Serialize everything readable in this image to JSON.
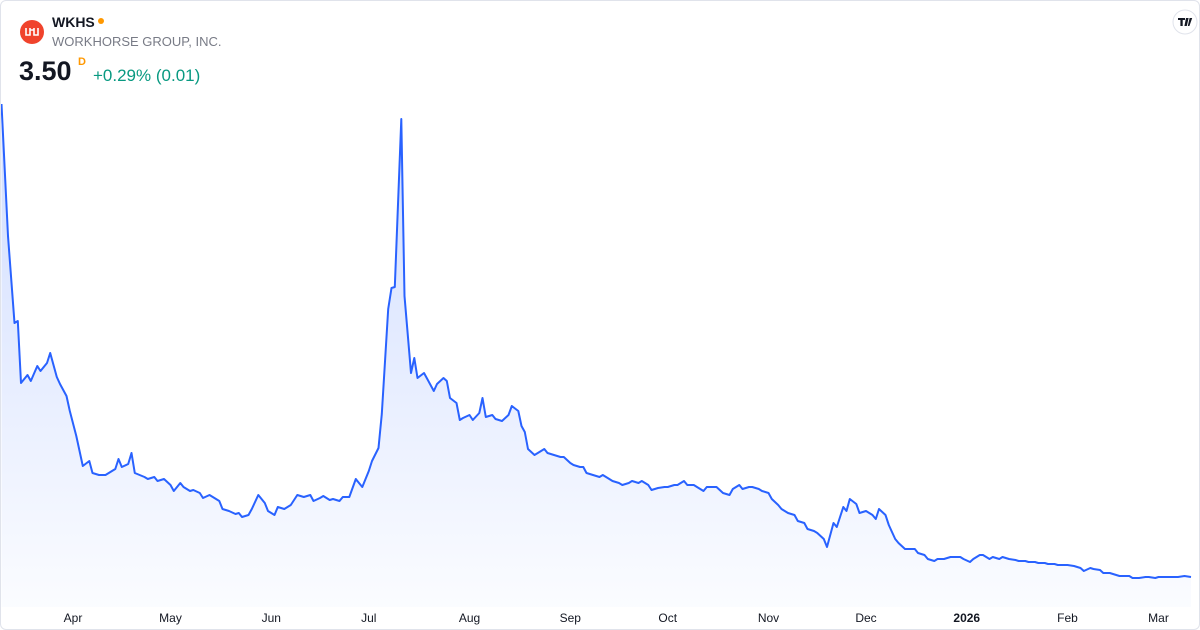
{
  "header": {
    "symbol": "WKHS",
    "company": "WORKHORSE GROUP, INC.",
    "price": "3.50",
    "price_flag": "D",
    "change": "+0.29% (0.01)"
  },
  "chart_data": {
    "type": "area",
    "color": "#2962ff",
    "xlim": [
      -22,
      344
    ],
    "ylim": [
      1.1,
      50.8
    ],
    "xticks": [
      {
        "value": 0,
        "label": "Apr"
      },
      {
        "value": 30,
        "label": "May"
      },
      {
        "value": 61,
        "label": "Jun"
      },
      {
        "value": 91,
        "label": "Jul"
      },
      {
        "value": 122,
        "label": "Aug"
      },
      {
        "value": 153,
        "label": "Sep"
      },
      {
        "value": 183,
        "label": "Oct"
      },
      {
        "value": 214,
        "label": "Nov"
      },
      {
        "value": 244,
        "label": "Dec"
      },
      {
        "value": 275,
        "label": "2026"
      },
      {
        "value": 306,
        "label": "Feb"
      },
      {
        "value": 334,
        "label": "Mar"
      }
    ],
    "x": [
      -22,
      -20,
      -18,
      -17,
      -16,
      -14,
      -13,
      -11,
      -10,
      -8,
      -7,
      -5,
      -4,
      -2,
      -1,
      1,
      3,
      5,
      6,
      8,
      10,
      12,
      13,
      14,
      15,
      17,
      18,
      19,
      22,
      23,
      25,
      26,
      28,
      30,
      31,
      33,
      34,
      36,
      37,
      39,
      40,
      42,
      43,
      45,
      46,
      48,
      50,
      51,
      52,
      54,
      55,
      57,
      59,
      60,
      62,
      63,
      65,
      67,
      69,
      71,
      73,
      74,
      76,
      77,
      79,
      80,
      82,
      83,
      85,
      87,
      88,
      89,
      91,
      92,
      94,
      95,
      97,
      98,
      99,
      101,
      102,
      104,
      105,
      106,
      108,
      109,
      111,
      112,
      114,
      115,
      116,
      118,
      119,
      120,
      122,
      123,
      125,
      126,
      127,
      129,
      130,
      132,
      134,
      135,
      137,
      138,
      139,
      140,
      142,
      143,
      145,
      146,
      148,
      150,
      151,
      153,
      154,
      156,
      157,
      158,
      160,
      162,
      163,
      165,
      166,
      168,
      169,
      171,
      172,
      174,
      175,
      177,
      178,
      180,
      182,
      183,
      185,
      186,
      188,
      189,
      191,
      192,
      194,
      195,
      197,
      198,
      200,
      202,
      203,
      205,
      206,
      208,
      209,
      211,
      212,
      214,
      215,
      217,
      218,
      220,
      222,
      223,
      225,
      226,
      228,
      229,
      231,
      232,
      234,
      235,
      237,
      238,
      239,
      241,
      242,
      244,
      246,
      247,
      248,
      250,
      251,
      253,
      254,
      256,
      257,
      259,
      260,
      262,
      263,
      265,
      266,
      268,
      270,
      271,
      273,
      274,
      276,
      277,
      279,
      280,
      282,
      283,
      285,
      286,
      288,
      290,
      291,
      293,
      294,
      296,
      297,
      299,
      300,
      302,
      303,
      305,
      306,
      308,
      310,
      311,
      313,
      314,
      316,
      317,
      319,
      320,
      322,
      323,
      325,
      326,
      328,
      330,
      331,
      333,
      334,
      336,
      337,
      339,
      340,
      342,
      344
    ],
    "values": [
      50.8,
      37.6,
      28.9,
      29.1,
      22.9,
      23.7,
      23.1,
      24.6,
      24.1,
      24.9,
      25.9,
      23.5,
      22.8,
      21.6,
      20.1,
      17.6,
      14.6,
      15.1,
      13.9,
      13.7,
      13.7,
      14.1,
      14.3,
      15.3,
      14.5,
      14.8,
      15.9,
      13.9,
      13.5,
      13.3,
      13.5,
      13.1,
      13.3,
      12.7,
      12.1,
      12.9,
      12.5,
      12.1,
      12.2,
      11.9,
      11.4,
      11.7,
      11.5,
      11.1,
      10.3,
      10.1,
      9.8,
      9.9,
      9.5,
      9.7,
      10.3,
      11.7,
      10.9,
      10.1,
      9.7,
      10.5,
      10.3,
      10.7,
      11.7,
      11.5,
      11.7,
      11.1,
      11.4,
      11.6,
      11.2,
      11.3,
      11.1,
      11.5,
      11.5,
      13.3,
      12.9,
      12.5,
      14.1,
      15.1,
      16.4,
      19.8,
      30.3,
      32.4,
      32.5,
      49.3,
      31.6,
      23.9,
      25.4,
      23.4,
      23.9,
      23.3,
      22.1,
      22.8,
      23.4,
      23.1,
      21.4,
      20.9,
      19.2,
      19.4,
      19.7,
      19.2,
      19.9,
      21.4,
      19.5,
      19.7,
      19.3,
      19.1,
      19.7,
      20.6,
      20.1,
      18.6,
      18.0,
      16.3,
      15.7,
      15.9,
      16.3,
      15.9,
      15.7,
      15.5,
      15.5,
      14.9,
      14.7,
      14.5,
      14.5,
      13.9,
      13.7,
      13.5,
      13.7,
      13.3,
      13.1,
      12.9,
      12.7,
      12.9,
      13.1,
      12.9,
      13.1,
      12.7,
      12.2,
      12.4,
      12.5,
      12.5,
      12.7,
      12.7,
      13.1,
      12.7,
      12.7,
      12.5,
      12.1,
      12.5,
      12.5,
      12.5,
      11.9,
      11.7,
      12.3,
      12.7,
      12.3,
      12.5,
      12.5,
      12.3,
      12.1,
      11.9,
      11.3,
      10.7,
      10.3,
      9.9,
      9.7,
      9.1,
      8.9,
      8.3,
      8.1,
      7.9,
      7.3,
      6.5,
      8.9,
      8.5,
      10.5,
      10.1,
      11.3,
      10.8,
      9.9,
      10.1,
      9.7,
      9.3,
      10.3,
      9.7,
      8.7,
      7.3,
      6.9,
      6.3,
      6.3,
      6.3,
      5.9,
      5.7,
      5.3,
      5.1,
      5.3,
      5.3,
      5.5,
      5.5,
      5.5,
      5.3,
      5.0,
      5.3,
      5.7,
      5.7,
      5.3,
      5.5,
      5.3,
      5.5,
      5.3,
      5.2,
      5.1,
      5.1,
      5.0,
      5.0,
      4.9,
      4.9,
      4.8,
      4.8,
      4.7,
      4.7,
      4.7,
      4.6,
      4.4,
      4.1,
      4.4,
      4.3,
      4.2,
      3.9,
      3.9,
      3.8,
      3.6,
      3.6,
      3.6,
      3.4,
      3.4,
      3.5,
      3.5,
      3.4,
      3.5,
      3.5,
      3.5,
      3.5,
      3.5,
      3.6,
      3.5
    ]
  }
}
